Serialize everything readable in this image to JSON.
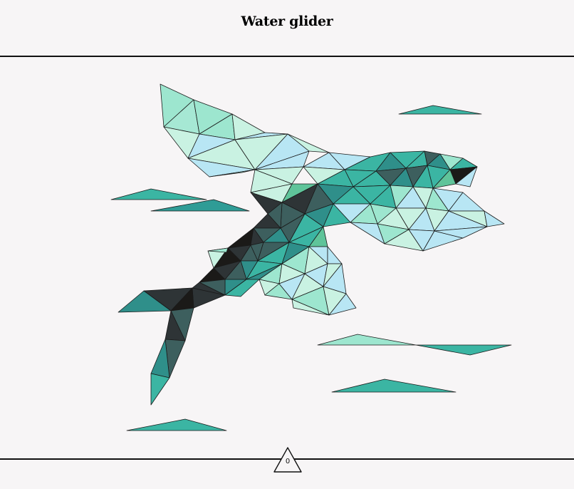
{
  "header": {
    "title": "Water glider"
  },
  "artwork": {
    "subject": "flying-fish-illustration",
    "palette": {
      "teal": "#3bb5a3",
      "dark_teal": "#2f8f8a",
      "slate": "#3d5f5e",
      "charcoal": "#2e3436",
      "black": "#1b1a18",
      "mint": "#9de6cf",
      "pale_mint": "#c9f2e2",
      "sky": "#b8e6f4",
      "green": "#5fc49a",
      "background": "#f7f5f6"
    }
  },
  "footer": {
    "counter": "0"
  }
}
